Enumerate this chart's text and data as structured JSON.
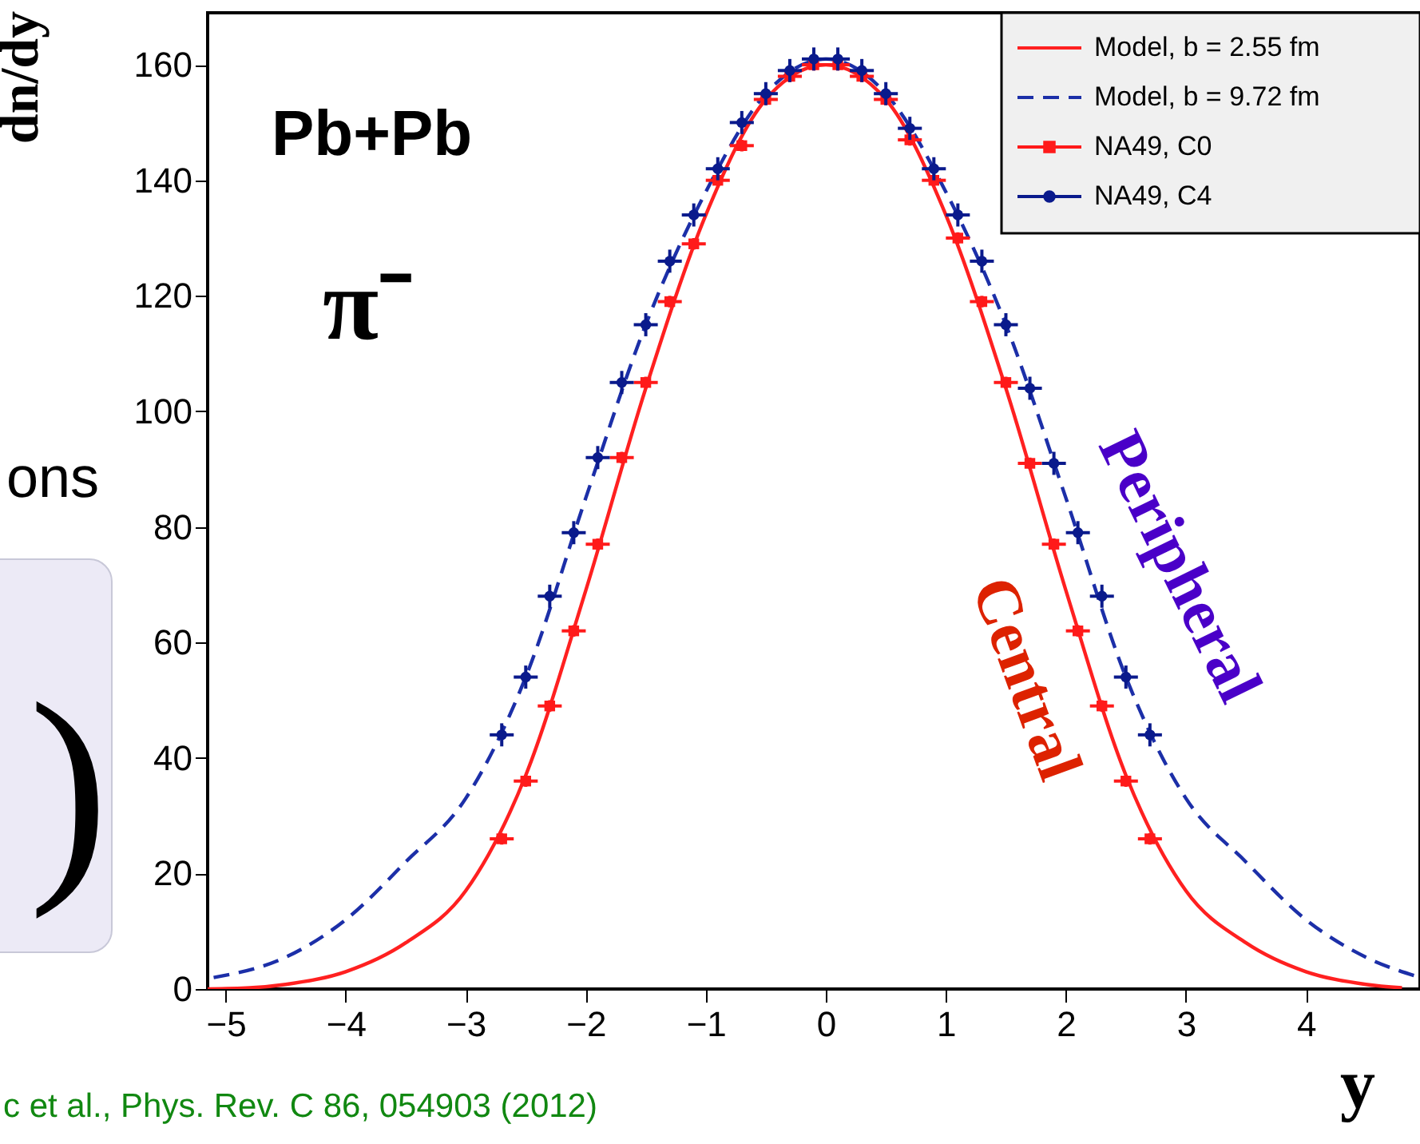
{
  "chart_data": {
    "type": "scatter",
    "ylabel": "dn/dy",
    "xlabel": "y",
    "xlim": [
      -5.15,
      4.95
    ],
    "ylim": [
      0,
      169
    ],
    "xticks": [
      -5,
      -4,
      -3,
      -2,
      -1,
      0,
      1,
      2,
      3,
      4
    ],
    "yticks": [
      0,
      20,
      40,
      60,
      80,
      100,
      120,
      140,
      160
    ],
    "grid": false,
    "legend": "top right",
    "series": [
      {
        "name": "Model, b = 2.55 fm",
        "type": "line",
        "color": "#ff2020",
        "line_style": "solid",
        "marker": "none",
        "x": [
          -5.15,
          -4.8,
          -4.5,
          -4,
          -3.5,
          -3,
          -2.5,
          -2,
          -1.5,
          -1,
          -0.5,
          0,
          0.5,
          1,
          1.5,
          2,
          2.5,
          3,
          3.5,
          4,
          4.5,
          4.8
        ],
        "values": [
          0,
          0.2,
          0.8,
          3,
          8,
          17,
          37,
          69,
          104,
          134,
          154,
          160,
          154,
          134,
          104,
          69,
          37,
          17,
          8,
          3,
          0.8,
          0.2
        ]
      },
      {
        "name": "Model, b = 9.72 fm",
        "type": "line",
        "color": "#1c2fa8",
        "line_style": "dashed",
        "marker": "none",
        "x": [
          -5.1,
          -4.5,
          -4,
          -3.5,
          -3,
          -2.5,
          -2,
          -1.5,
          -1,
          -0.5,
          0,
          0.5,
          1,
          1.5,
          2,
          2.5,
          3,
          3.5,
          4,
          4.5,
          4.95
        ],
        "values": [
          2,
          5.5,
          12,
          22,
          33,
          54,
          85,
          115,
          138,
          155,
          161,
          155,
          138,
          115,
          85,
          54,
          33,
          22,
          12,
          5.5,
          2
        ]
      },
      {
        "name": "NA49, C0",
        "color": "#ff1a1a",
        "marker": "square",
        "x": [
          -2.7,
          -2.5,
          -2.3,
          -2.1,
          -1.9,
          -1.7,
          -1.5,
          -1.3,
          -1.1,
          -0.9,
          -0.7,
          -0.5,
          -0.3,
          -0.1,
          0.1,
          0.3,
          0.5,
          0.7,
          0.9,
          1.1,
          1.3,
          1.5,
          1.7,
          1.9,
          2.1,
          2.3,
          2.5,
          2.7
        ],
        "values": [
          26,
          36,
          49,
          62,
          77,
          92,
          105,
          119,
          129,
          140,
          146,
          154,
          158,
          160,
          160,
          158,
          154,
          147,
          140,
          130,
          119,
          105,
          91,
          77,
          62,
          49,
          36,
          26
        ],
        "errors": [
          1,
          1,
          1,
          1,
          1,
          1,
          1,
          1,
          1,
          1,
          1,
          1,
          1,
          1,
          1,
          1,
          1,
          1,
          1,
          1,
          1,
          1,
          1,
          1,
          1,
          1,
          1,
          1
        ],
        "xerrors": [
          0.1,
          0.1,
          0.1,
          0.1,
          0.1,
          0.1,
          0.1,
          0.1,
          0.1,
          0.1,
          0.1,
          0.1,
          0.1,
          0.1,
          0.1,
          0.1,
          0.1,
          0.1,
          0.1,
          0.1,
          0.1,
          0.1,
          0.1,
          0.1,
          0.1,
          0.1,
          0.1,
          0.1
        ]
      },
      {
        "name": "NA49, C4",
        "color": "#0a1a8c",
        "marker": "circle",
        "x": [
          -2.7,
          -2.5,
          -2.3,
          -2.1,
          -1.9,
          -1.7,
          -1.5,
          -1.3,
          -1.1,
          -0.9,
          -0.7,
          -0.5,
          -0.3,
          -0.1,
          0.1,
          0.3,
          0.5,
          0.7,
          0.9,
          1.1,
          1.3,
          1.5,
          1.7,
          1.9,
          2.1,
          2.3,
          2.5,
          2.7
        ],
        "values": [
          44,
          54,
          68,
          79,
          92,
          105,
          115,
          126,
          134,
          142,
          150,
          155,
          159,
          161,
          161,
          159,
          155,
          149,
          142,
          134,
          126,
          115,
          104,
          91,
          79,
          68,
          54,
          44
        ],
        "errors": [
          2,
          2,
          2,
          2,
          2,
          2,
          2,
          2,
          2,
          2,
          2,
          2,
          2,
          2,
          2,
          2,
          2,
          2,
          2,
          2,
          2,
          2,
          2,
          2,
          2,
          2,
          2,
          2
        ],
        "xerrors": [
          0.1,
          0.1,
          0.1,
          0.1,
          0.1,
          0.1,
          0.1,
          0.1,
          0.1,
          0.1,
          0.1,
          0.1,
          0.1,
          0.1,
          0.1,
          0.1,
          0.1,
          0.1,
          0.1,
          0.1,
          0.1,
          0.1,
          0.1,
          0.1,
          0.1,
          0.1,
          0.1,
          0.1
        ]
      }
    ],
    "annotations": [
      "Pb+Pb",
      "π⁻",
      "Peripheral",
      "Central",
      "c et al., Phys. Rev. C 86, 054903 (2012)",
      "ons",
      ")"
    ]
  }
}
